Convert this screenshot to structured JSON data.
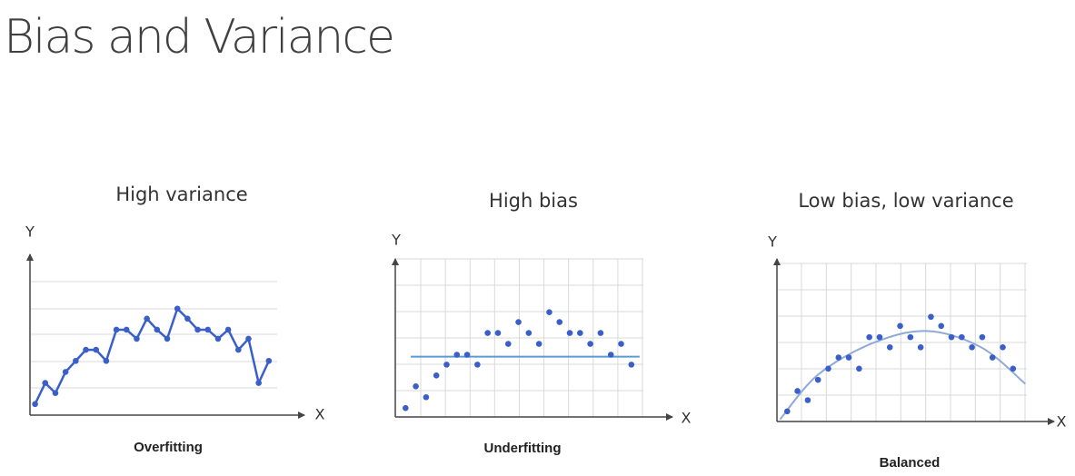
{
  "title": "Bias and Variance",
  "chart_data": [
    {
      "type": "line",
      "title": "High variance",
      "caption": "Overfitting",
      "x_label": "X",
      "y_label": "Y",
      "color": "#3a5fc8",
      "xlim": [
        0,
        27
      ],
      "ylim": [
        0,
        16
      ],
      "x": [
        0.5,
        1.5,
        2.5,
        3.5,
        4.5,
        5.5,
        6.5,
        7.5,
        8.5,
        9.5,
        10.5,
        11.5,
        12.5,
        13.5,
        14.5,
        15.5,
        16.5,
        17.5,
        18.5,
        19.5,
        20.5,
        21.5,
        22.5,
        23.5
      ],
      "values": [
        1.1,
        3.2,
        2.2,
        4.3,
        5.4,
        6.5,
        6.5,
        5.4,
        8.5,
        8.5,
        7.6,
        9.6,
        8.5,
        7.6,
        10.6,
        9.6,
        8.5,
        8.5,
        7.6,
        8.5,
        6.5,
        7.6,
        3.2,
        5.4
      ]
    },
    {
      "type": "scatter",
      "title": "High bias",
      "caption": "Underfitting",
      "x_label": "X",
      "y_label": "Y",
      "color": "#3a5fc8",
      "xlim": [
        0,
        27
      ],
      "ylim": [
        0,
        16
      ],
      "x": [
        1,
        2,
        3,
        4,
        5,
        6,
        7,
        8,
        9,
        10,
        11,
        12,
        13,
        14,
        15,
        16,
        17,
        18,
        19,
        20,
        21,
        22,
        23
      ],
      "values": [
        0.9,
        3.1,
        2.0,
        4.2,
        5.3,
        6.3,
        6.3,
        5.3,
        8.5,
        8.5,
        7.4,
        9.6,
        8.5,
        7.4,
        10.6,
        9.6,
        8.5,
        8.5,
        7.4,
        8.5,
        6.3,
        7.4,
        5.3
      ],
      "fit": {
        "color": "#5b9bd5",
        "x": [
          1.5,
          23.8
        ],
        "values": [
          6.1,
          6.1
        ]
      }
    },
    {
      "type": "scatter",
      "title": "Low bias, low variance",
      "caption": "Balanced",
      "x_label": "X",
      "y_label": "Y",
      "color": "#3a5fc8",
      "xlim": [
        0,
        27
      ],
      "ylim": [
        0,
        16
      ],
      "x": [
        1,
        2,
        3,
        4,
        5,
        6,
        7,
        8,
        9,
        10,
        11,
        12,
        13,
        14,
        15,
        16,
        17,
        18,
        19,
        20,
        21,
        22,
        23
      ],
      "values": [
        1.0,
        3.0,
        2.1,
        4.1,
        5.2,
        6.3,
        6.3,
        5.2,
        8.3,
        8.3,
        7.3,
        9.4,
        8.3,
        7.3,
        10.3,
        9.4,
        8.3,
        8.3,
        7.3,
        8.3,
        6.3,
        7.3,
        5.2
      ],
      "fit": {
        "color": "#8fa9d8",
        "x": [
          0.3,
          4,
          9.3,
          14.6,
          19.9,
          24.2
        ],
        "values": [
          0.2,
          4.6,
          7.7,
          8.9,
          7.3,
          3.7
        ]
      }
    }
  ]
}
